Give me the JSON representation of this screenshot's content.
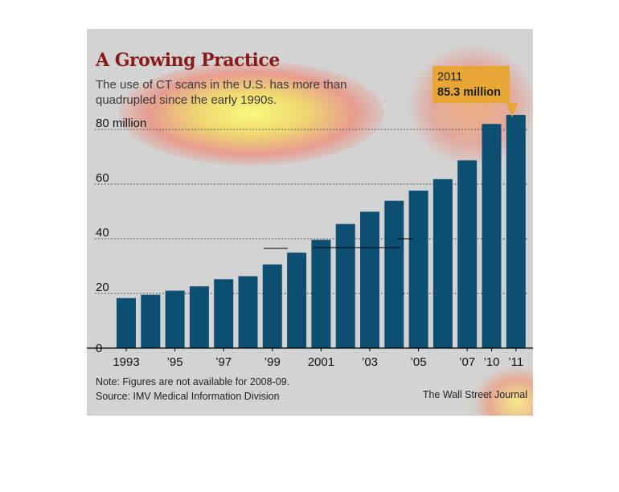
{
  "title": "A Growing Practice",
  "subtitle": "The use of CT scans in the U.S. has more than quadrupled since the early 1990s.",
  "note": "Note: Figures are not available for 2008-09.",
  "source": "Source: IMV Medical Information Division",
  "credit": "The Wall Street Journal",
  "callout": {
    "year": "2011",
    "value": "85.3 million"
  },
  "colors": {
    "bar": "#0d4f73",
    "title": "#8b1a1a",
    "callout": "#e8a735",
    "background": "#d3d3d3"
  },
  "chart_data": {
    "type": "bar",
    "title": "A Growing Practice",
    "xlabel": "",
    "ylabel": "",
    "ylim": [
      0,
      80
    ],
    "yticks": [
      0,
      20,
      40,
      60,
      80
    ],
    "ytick_labels": [
      "0",
      "20",
      "40",
      "60",
      "80 million"
    ],
    "categories": [
      "1993",
      "1994",
      "1995",
      "1996",
      "1997",
      "1998",
      "1999",
      "2000",
      "2001",
      "2002",
      "2003",
      "2004",
      "2005",
      "2006",
      "2007",
      "2010",
      "2011"
    ],
    "xtick_labels": [
      "1993",
      "",
      "’95",
      "",
      "’97",
      "",
      "’99",
      "",
      "2001",
      "",
      "’03",
      "",
      "’05",
      "",
      "’07",
      "’10",
      "’11"
    ],
    "values": [
      18.3,
      19.5,
      21.0,
      22.6,
      25.2,
      26.3,
      30.6,
      34.9,
      39.6,
      45.4,
      49.9,
      53.9,
      57.6,
      61.8,
      68.7,
      82.0,
      85.3
    ],
    "grid": true
  }
}
